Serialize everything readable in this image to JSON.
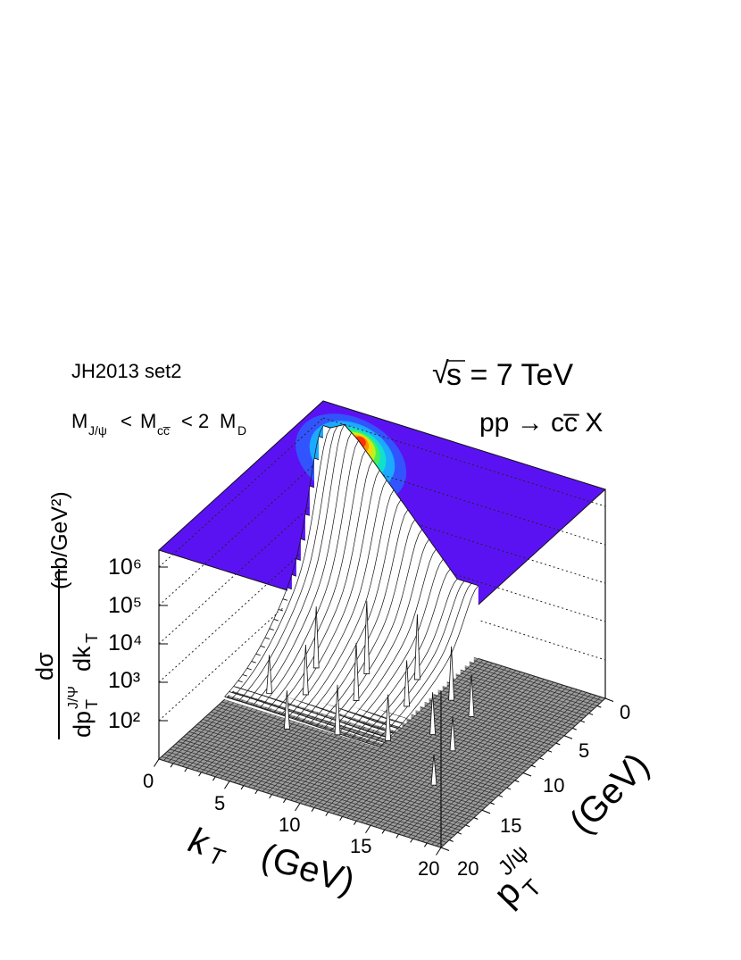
{
  "annotations": {
    "pdf_set": "JH2013 set2",
    "mass_m1": "M",
    "mass_m1_sub": "J/ψ",
    "mass_lt1": "<",
    "mass_m2": "M",
    "mass_m2_sub": "cc̅",
    "mass_lt2": "< 2",
    "mass_m3": "M",
    "mass_m3_sub": "D",
    "energy_root": "√",
    "energy_text": "s = 7 TeV",
    "process": "pp → cc̅ X"
  },
  "chart_data": {
    "type": "surface3d",
    "title": "",
    "x_axis": {
      "var": "k",
      "var_sub": "T",
      "unit": "(GeV)",
      "range": [
        0,
        20
      ],
      "ticks": [
        "0",
        "5",
        "10",
        "15",
        "20"
      ]
    },
    "y_axis": {
      "var": "p",
      "var_sub": "T",
      "var_sup": "J/ψ",
      "unit": "(GeV)",
      "range": [
        0,
        20
      ],
      "ticks": [
        "0",
        "5",
        "10",
        "15",
        "20"
      ]
    },
    "z_axis": {
      "scale": "log",
      "range": [
        10,
        1000000
      ],
      "ticks": [
        "10²",
        "10³",
        "10⁴",
        "10⁵",
        "10⁶"
      ],
      "num_d": "dσ",
      "den_dp": "dp",
      "den_sub": "T",
      "den_sup": "J/Ψ",
      "den_dk": "dk",
      "den_dk_sub": "T",
      "unit": "(nb/GeV²)"
    },
    "grid": true,
    "colormap": "rainbow",
    "peak": {
      "kT": 1.5,
      "pT_Jpsi": 0.5,
      "value": 1000000
    },
    "ridge_kT": [
      0.5,
      1.5,
      2.5,
      3.5,
      4.5,
      5.5,
      6.5,
      7.5,
      8.5,
      9.5
    ],
    "ridge_log10": [
      5.8,
      6.0,
      5.7,
      5.3,
      4.9,
      4.5,
      4.1,
      3.7,
      3.3,
      2.9
    ]
  }
}
